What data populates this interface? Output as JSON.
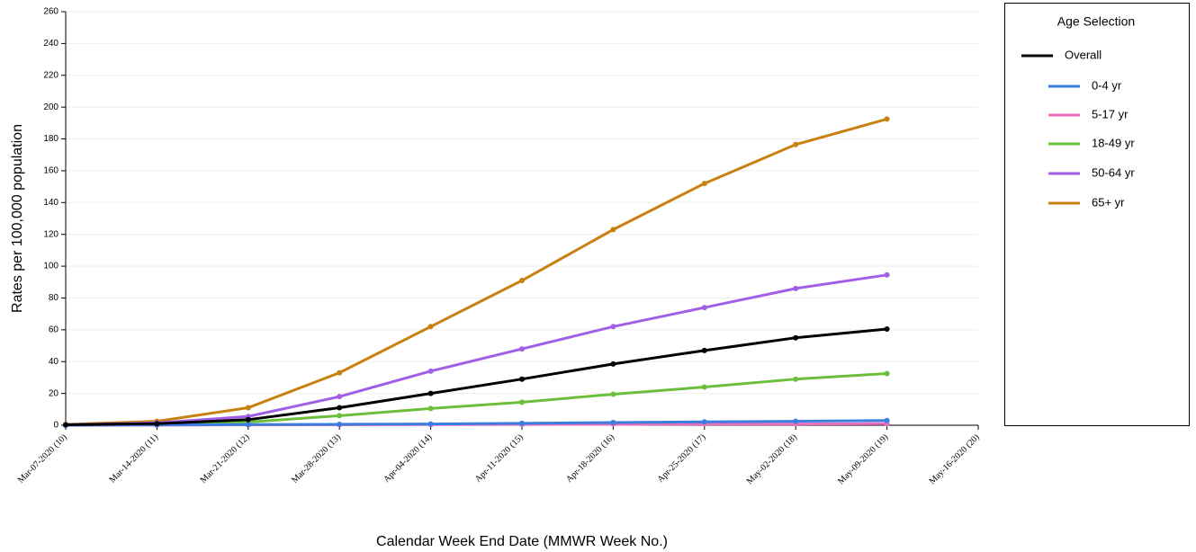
{
  "chart_data": {
    "type": "line",
    "x_label": "Calendar Week End Date (MMWR Week No.)",
    "y_label": "Rates per 100,000 population",
    "legend_title": "Age Selection",
    "legend_position": "right",
    "grid": true,
    "categories": [
      "Mar-07-2020 (10)",
      "Mar-14-2020 (11)",
      "Mar-21-2020 (12)",
      "Mar-28-2020 (13)",
      "Apr-04-2020 (14)",
      "Apr-11-2020 (15)",
      "Apr-18-2020 (16)",
      "Apr-25-2020 (17)",
      "May-02-2020 (18)",
      "May-09-2020 (19)",
      "May-16-2020 (20)"
    ],
    "ylim": [
      0,
      260
    ],
    "yticks": [
      0,
      20,
      40,
      60,
      80,
      100,
      120,
      140,
      160,
      180,
      200,
      220,
      240,
      260
    ],
    "series": [
      {
        "name": "Overall",
        "color": "#000000",
        "values": [
          0.3,
          1,
          3.5,
          11,
          20,
          29,
          38.5,
          47,
          55,
          60.5,
          null
        ]
      },
      {
        "name": "0-4 yr",
        "color": "#3a7fe0",
        "values": [
          0,
          0.2,
          0.4,
          0.6,
          0.8,
          1.2,
          1.7,
          2.1,
          2.5,
          3,
          null
        ]
      },
      {
        "name": "5-17 yr",
        "color": "#e86fbd",
        "values": [
          0,
          0.1,
          0.2,
          0.3,
          0.4,
          0.5,
          0.6,
          0.7,
          0.8,
          1,
          null
        ]
      },
      {
        "name": "18-49 yr",
        "color": "#6cbf3c",
        "values": [
          0.1,
          0.5,
          2,
          6,
          10.5,
          14.5,
          19.5,
          24,
          29,
          32.5,
          null
        ]
      },
      {
        "name": "50-64 yr",
        "color": "#a25ee6",
        "values": [
          0.3,
          1.5,
          5.5,
          18,
          34,
          48,
          62,
          74,
          86,
          94.5,
          null
        ]
      },
      {
        "name": "65+ yr",
        "color": "#c8800f",
        "values": [
          0.5,
          2.5,
          11,
          33,
          62,
          91,
          123,
          152,
          176.5,
          192.5,
          null
        ]
      }
    ]
  }
}
